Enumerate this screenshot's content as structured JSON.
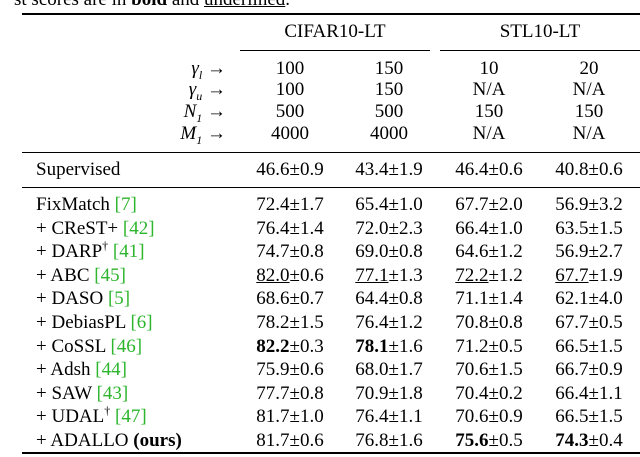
{
  "caption": {
    "prefix": "st scores are in ",
    "bold": "bold",
    "middle": " and ",
    "underlined": "underlined",
    "suffix": "."
  },
  "groups": [
    {
      "name": "CIFAR10-LT"
    },
    {
      "name": "STL10-LT"
    }
  ],
  "param_rows": [
    {
      "label": "γ",
      "sub": "l",
      "arrow": "→",
      "values": [
        "100",
        "150",
        "10",
        "20"
      ]
    },
    {
      "label": "γ",
      "sub": "u",
      "arrow": "→",
      "values": [
        "100",
        "150",
        "N/A",
        "N/A"
      ]
    },
    {
      "label": "N",
      "sub": "1",
      "arrow": "→",
      "values": [
        "500",
        "500",
        "150",
        "150"
      ]
    },
    {
      "label": "M",
      "sub": "1",
      "arrow": "→",
      "values": [
        "4000",
        "4000",
        "N/A",
        "N/A"
      ]
    }
  ],
  "supervised": {
    "method": "Supervised",
    "values": [
      {
        "main": "46.6",
        "pm": "±0.9"
      },
      {
        "main": "43.4",
        "pm": "±1.9"
      },
      {
        "main": "46.4",
        "pm": "±0.6"
      },
      {
        "main": "40.8",
        "pm": "±0.6"
      }
    ]
  },
  "methods": [
    {
      "prefix": "",
      "name": "FixMatch",
      "dagger": "",
      "cite": "[7]",
      "values": [
        {
          "main": "72.4",
          "pm": "±1.7"
        },
        {
          "main": "65.4",
          "pm": "±1.0"
        },
        {
          "main": "67.7",
          "pm": "±2.0"
        },
        {
          "main": "56.9",
          "pm": "±3.2"
        }
      ]
    },
    {
      "prefix": "+ ",
      "name": "CReST+",
      "dagger": "",
      "cite": "[42]",
      "values": [
        {
          "main": "76.4",
          "pm": "±1.4"
        },
        {
          "main": "72.0",
          "pm": "±2.3"
        },
        {
          "main": "66.4",
          "pm": "±1.0"
        },
        {
          "main": "63.5",
          "pm": "±1.5"
        }
      ]
    },
    {
      "prefix": "+ ",
      "name": "DARP",
      "dagger": "†",
      "cite": "[41]",
      "values": [
        {
          "main": "74.7",
          "pm": "±0.8"
        },
        {
          "main": "69.0",
          "pm": "±0.8"
        },
        {
          "main": "64.6",
          "pm": "±1.2"
        },
        {
          "main": "56.9",
          "pm": "±2.7"
        }
      ]
    },
    {
      "prefix": "+ ",
      "name": "ABC",
      "dagger": "",
      "cite": "[45]",
      "values": [
        {
          "main": "82.0",
          "pm": "±0.6",
          "style": "second"
        },
        {
          "main": "77.1",
          "pm": "±1.3",
          "style": "second"
        },
        {
          "main": "72.2",
          "pm": "±1.2",
          "style": "second"
        },
        {
          "main": "67.7",
          "pm": "±1.9",
          "style": "second"
        }
      ]
    },
    {
      "prefix": "+ ",
      "name": "DASO",
      "dagger": "",
      "cite": "[5]",
      "values": [
        {
          "main": "68.6",
          "pm": "±0.7"
        },
        {
          "main": "64.4",
          "pm": "±0.8"
        },
        {
          "main": "71.1",
          "pm": "±1.4"
        },
        {
          "main": "62.1",
          "pm": "±4.0"
        }
      ]
    },
    {
      "prefix": "+ ",
      "name": "DebiasPL",
      "dagger": "",
      "cite": "[6]",
      "values": [
        {
          "main": "78.2",
          "pm": "±1.5"
        },
        {
          "main": "76.4",
          "pm": "±1.2"
        },
        {
          "main": "70.8",
          "pm": "±0.8"
        },
        {
          "main": "67.7",
          "pm": "±0.5"
        }
      ]
    },
    {
      "prefix": "+ ",
      "name": "CoSSL",
      "dagger": "",
      "cite": "[46]",
      "values": [
        {
          "main": "82.2",
          "pm": "±0.3",
          "style": "best"
        },
        {
          "main": "78.1",
          "pm": "±1.6",
          "style": "best"
        },
        {
          "main": "71.2",
          "pm": "±0.5"
        },
        {
          "main": "66.5",
          "pm": "±1.5"
        }
      ]
    },
    {
      "prefix": "+ ",
      "name": "Adsh",
      "dagger": "",
      "cite": "[44]",
      "values": [
        {
          "main": "75.9",
          "pm": "±0.6"
        },
        {
          "main": "68.0",
          "pm": "±1.7"
        },
        {
          "main": "70.6",
          "pm": "±1.5"
        },
        {
          "main": "66.7",
          "pm": "±0.9"
        }
      ]
    },
    {
      "prefix": "+ ",
      "name": "SAW",
      "dagger": "",
      "cite": "[43]",
      "values": [
        {
          "main": "77.7",
          "pm": "±0.8"
        },
        {
          "main": "70.9",
          "pm": "±1.8"
        },
        {
          "main": "70.4",
          "pm": "±0.2"
        },
        {
          "main": "66.4",
          "pm": "±1.1"
        }
      ]
    },
    {
      "prefix": "+ ",
      "name": "UDAL",
      "dagger": "†",
      "cite": "[47]",
      "values": [
        {
          "main": "81.7",
          "pm": "±1.0"
        },
        {
          "main": "76.4",
          "pm": "±1.1"
        },
        {
          "main": "70.6",
          "pm": "±0.9"
        },
        {
          "main": "66.5",
          "pm": "±1.5"
        }
      ]
    },
    {
      "prefix": "+ ",
      "name": "ADALLO",
      "dagger": "",
      "cite": "",
      "ours": "(ours)",
      "values": [
        {
          "main": "81.7",
          "pm": "±0.6"
        },
        {
          "main": "76.8",
          "pm": "±1.6"
        },
        {
          "main": "75.6",
          "pm": "±0.5",
          "style": "best"
        },
        {
          "main": "74.3",
          "pm": "±0.4",
          "style": "best"
        }
      ]
    }
  ],
  "colors": {
    "cite": "#2db52d",
    "text": "#000000"
  }
}
